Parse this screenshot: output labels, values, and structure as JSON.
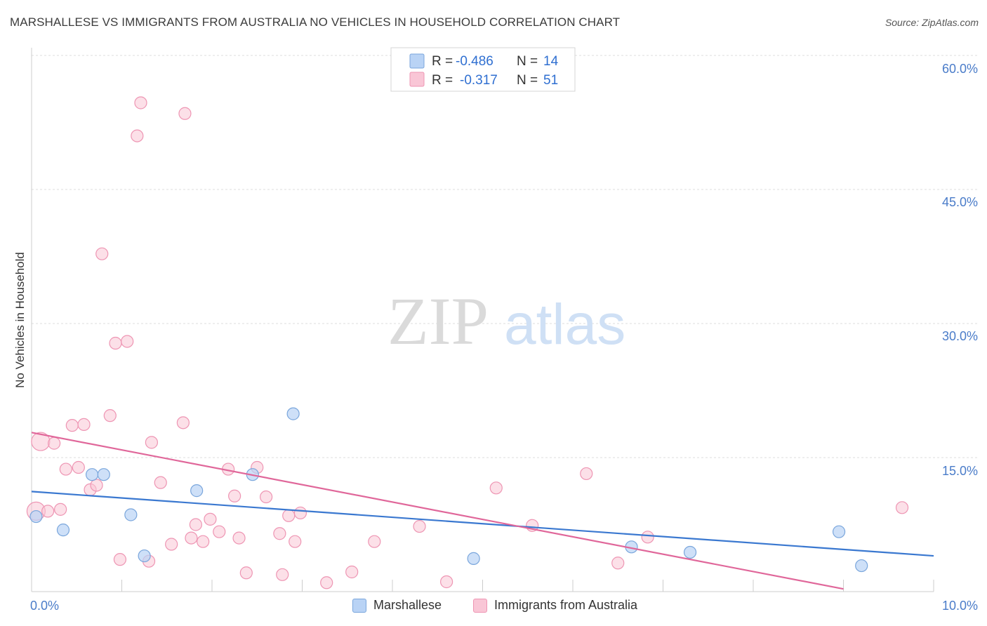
{
  "title": "MARSHALLESE VS IMMIGRANTS FROM AUSTRALIA NO VEHICLES IN HOUSEHOLD CORRELATION CHART",
  "source": "Source: ZipAtlas.com",
  "watermark": {
    "zip": "ZIP",
    "atlas": "atlas"
  },
  "colors": {
    "marshallese_fill": "#b9d3f5",
    "marshallese_stroke": "#7aa6dc",
    "marshallese_line": "#3a78d0",
    "australia_fill": "#f9c6d6",
    "australia_stroke": "#ee95b3",
    "australia_line": "#e0679a",
    "tick_text": "#4a7cc9",
    "grid": "#dedede"
  },
  "legend": {
    "rows": [
      {
        "r_label": "R =",
        "r_value": "-0.486",
        "n_label": "N =",
        "n_value": "14"
      },
      {
        "r_label": "R =",
        "r_value": "-0.317",
        "n_label": "N =",
        "n_value": "51"
      }
    ]
  },
  "bottom_legend": {
    "series1": "Marshallese",
    "series2": "Immigrants from Australia"
  },
  "chart_data": {
    "type": "scatter",
    "title": "MARSHALLESE VS IMMIGRANTS FROM AUSTRALIA NO VEHICLES IN HOUSEHOLD CORRELATION CHART",
    "xlabel": "",
    "ylabel": "No Vehicles in Household",
    "xlim": [
      0,
      10
    ],
    "ylim": [
      0,
      60
    ],
    "y_ticks": [
      "15.0%",
      "30.0%",
      "45.0%",
      "60.0%"
    ],
    "x_tick_labels": [
      "0.0%",
      "10.0%"
    ],
    "grid": true,
    "legend_position": "top-center",
    "series": [
      {
        "name": "Marshallese",
        "R": -0.486,
        "N": 14,
        "points": [
          [
            0.05,
            8.4
          ],
          [
            0.35,
            6.9
          ],
          [
            0.67,
            13.1
          ],
          [
            0.8,
            13.1
          ],
          [
            1.1,
            8.6
          ],
          [
            1.25,
            4.0
          ],
          [
            1.83,
            11.3
          ],
          [
            2.45,
            13.1
          ],
          [
            2.9,
            19.9
          ],
          [
            4.9,
            3.7
          ],
          [
            6.65,
            5.0
          ],
          [
            7.3,
            4.4
          ],
          [
            8.95,
            6.7
          ],
          [
            9.2,
            2.9
          ]
        ],
        "trend": [
          [
            0.0,
            11.2
          ],
          [
            10.0,
            4.0
          ]
        ]
      },
      {
        "name": "Immigrants from Australia",
        "R": -0.317,
        "N": 51,
        "points": [
          [
            0.05,
            9.0
          ],
          [
            0.1,
            16.8
          ],
          [
            0.18,
            9.0
          ],
          [
            0.25,
            16.6
          ],
          [
            0.32,
            9.2
          ],
          [
            0.38,
            13.7
          ],
          [
            0.45,
            18.6
          ],
          [
            0.52,
            13.9
          ],
          [
            0.58,
            18.7
          ],
          [
            0.65,
            11.4
          ],
          [
            0.72,
            11.9
          ],
          [
            0.78,
            37.8
          ],
          [
            0.87,
            19.7
          ],
          [
            0.93,
            27.8
          ],
          [
            0.98,
            3.6
          ],
          [
            1.06,
            28.0
          ],
          [
            1.17,
            51.0
          ],
          [
            1.21,
            54.7
          ],
          [
            1.3,
            3.4
          ],
          [
            1.33,
            16.7
          ],
          [
            1.43,
            12.2
          ],
          [
            1.55,
            5.3
          ],
          [
            1.68,
            18.9
          ],
          [
            1.7,
            53.5
          ],
          [
            1.77,
            6.0
          ],
          [
            1.82,
            7.5
          ],
          [
            1.9,
            5.6
          ],
          [
            1.98,
            8.1
          ],
          [
            2.08,
            6.7
          ],
          [
            2.18,
            13.7
          ],
          [
            2.25,
            10.7
          ],
          [
            2.3,
            6.0
          ],
          [
            2.38,
            2.1
          ],
          [
            2.5,
            13.9
          ],
          [
            2.6,
            10.6
          ],
          [
            2.75,
            6.5
          ],
          [
            2.78,
            1.9
          ],
          [
            2.85,
            8.5
          ],
          [
            2.92,
            5.6
          ],
          [
            2.98,
            8.8
          ],
          [
            3.27,
            1.0
          ],
          [
            3.55,
            2.2
          ],
          [
            3.8,
            5.6
          ],
          [
            4.3,
            7.3
          ],
          [
            4.6,
            1.1
          ],
          [
            5.15,
            11.6
          ],
          [
            5.55,
            7.4
          ],
          [
            6.15,
            13.2
          ],
          [
            6.5,
            3.2
          ],
          [
            6.83,
            6.1
          ],
          [
            9.65,
            9.4
          ]
        ],
        "trend": [
          [
            0.0,
            17.8
          ],
          [
            9.0,
            0.3
          ]
        ]
      }
    ]
  }
}
